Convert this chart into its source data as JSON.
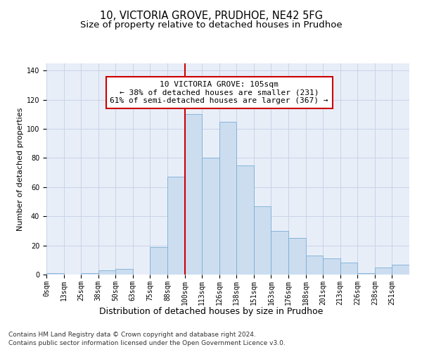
{
  "title_line1": "10, VICTORIA GROVE, PRUDHOE, NE42 5FG",
  "title_line2": "Size of property relative to detached houses in Prudhoe",
  "xlabel": "Distribution of detached houses by size in Prudhoe",
  "ylabel": "Number of detached properties",
  "bin_labels": [
    "0sqm",
    "13sqm",
    "25sqm",
    "38sqm",
    "50sqm",
    "63sqm",
    "75sqm",
    "88sqm",
    "100sqm",
    "113sqm",
    "126sqm",
    "138sqm",
    "151sqm",
    "163sqm",
    "176sqm",
    "188sqm",
    "201sqm",
    "213sqm",
    "226sqm",
    "238sqm",
    "251sqm"
  ],
  "bar_heights": [
    1,
    0,
    1,
    3,
    4,
    0,
    19,
    67,
    110,
    80,
    105,
    75,
    47,
    30,
    25,
    13,
    11,
    8,
    1,
    5,
    7
  ],
  "bar_color": "#ccddf0",
  "bar_edgecolor": "#7aafd4",
  "vline_x_index": 8,
  "vline_color": "#cc0000",
  "annotation_text": "10 VICTORIA GROVE: 105sqm\n← 38% of detached houses are smaller (231)\n61% of semi-detached houses are larger (367) →",
  "annotation_box_edgecolor": "#cc0000",
  "annotation_box_facecolor": "#ffffff",
  "ylim": [
    0,
    145
  ],
  "yticks": [
    0,
    20,
    40,
    60,
    80,
    100,
    120,
    140
  ],
  "grid_color": "#c8d4e8",
  "background_color": "#e8eef8",
  "footer_line1": "Contains HM Land Registry data © Crown copyright and database right 2024.",
  "footer_line2": "Contains public sector information licensed under the Open Government Licence v3.0.",
  "title_fontsize": 10.5,
  "subtitle_fontsize": 9.5,
  "xlabel_fontsize": 9,
  "ylabel_fontsize": 8,
  "tick_fontsize": 7,
  "annotation_fontsize": 8,
  "footer_fontsize": 6.5,
  "bin_width": 13
}
